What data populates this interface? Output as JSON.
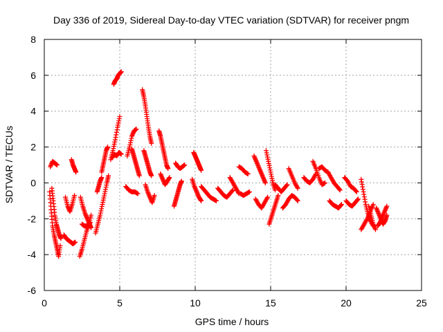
{
  "chart_data": {
    "type": "scatter",
    "title": "Day 336 of 2019, Sidereal Day-to-day VTEC variation (SDTVAR) for receiver pngm",
    "xlabel": "GPS time / hours",
    "ylabel": "SDTVAR / TECUs",
    "xlim": [
      0,
      25
    ],
    "ylim": [
      -6,
      8
    ],
    "xticks": [
      0,
      5,
      10,
      15,
      20,
      25
    ],
    "yticks": [
      -6,
      -4,
      -2,
      0,
      2,
      4,
      6,
      8
    ],
    "grid": true,
    "marker": "+",
    "color": "#ff0000",
    "segments": [
      {
        "x": [
          0.4,
          0.55,
          0.7,
          0.85
        ],
        "y": [
          0.9,
          1.2,
          1.1,
          1.0
        ]
      },
      {
        "x": [
          0.35,
          0.45,
          0.55,
          0.65,
          0.75,
          0.85,
          0.95,
          1.05
        ],
        "y": [
          -0.5,
          -1.5,
          -2.4,
          -2.9,
          -3.3,
          -3.7,
          -4.1,
          -3.5
        ]
      },
      {
        "x": [
          0.5,
          0.6,
          0.7,
          0.8,
          0.9,
          1.0,
          1.1
        ],
        "y": [
          -0.3,
          -1.0,
          -1.8,
          -2.3,
          -2.6,
          -2.9,
          -3.1
        ]
      },
      {
        "x": [
          1.3,
          1.45,
          1.6,
          1.75,
          1.9,
          2.05
        ],
        "y": [
          -2.9,
          -3.1,
          -3.2,
          -3.3,
          -3.4,
          -3.3
        ]
      },
      {
        "x": [
          1.4,
          1.55,
          1.7,
          1.85,
          2.0
        ],
        "y": [
          -0.8,
          -1.3,
          -1.6,
          -1.2,
          -0.7
        ]
      },
      {
        "x": [
          1.8,
          1.9,
          2.0,
          2.1
        ],
        "y": [
          1.3,
          1.0,
          0.8,
          0.6
        ]
      },
      {
        "x": [
          2.35,
          2.5,
          2.65,
          2.8,
          2.95,
          3.1
        ],
        "y": [
          -4.1,
          -3.7,
          -3.2,
          -2.7,
          -2.3,
          -1.8
        ]
      },
      {
        "x": [
          2.4,
          2.55,
          2.7,
          2.85,
          3.0,
          3.1
        ],
        "y": [
          -0.8,
          -1.3,
          -1.7,
          -2.0,
          -2.3,
          -2.5
        ]
      },
      {
        "x": [
          2.5,
          2.65,
          2.8,
          2.95,
          3.05
        ],
        "y": [
          -2.3,
          -2.4,
          -2.4,
          -2.3,
          -2.2
        ]
      },
      {
        "x": [
          3.4,
          3.55,
          3.7,
          3.85,
          4.0,
          4.15,
          4.25
        ],
        "y": [
          -2.8,
          -2.3,
          -1.8,
          -1.2,
          -0.6,
          0.0,
          0.4
        ]
      },
      {
        "x": [
          3.5,
          3.6,
          3.7,
          3.8
        ],
        "y": [
          -0.5,
          -0.2,
          0.1,
          0.3
        ]
      },
      {
        "x": [
          3.8,
          3.9,
          4.0,
          4.1,
          4.2
        ],
        "y": [
          0.6,
          1.0,
          1.4,
          1.8,
          2.0
        ]
      },
      {
        "x": [
          4.4,
          4.55,
          4.7,
          4.85,
          5.0
        ],
        "y": [
          1.3,
          1.8,
          2.4,
          3.1,
          3.7
        ]
      },
      {
        "x": [
          4.5,
          4.65,
          4.8,
          4.95,
          5.1
        ],
        "y": [
          1.4,
          1.6,
          1.5,
          1.7,
          1.6
        ]
      },
      {
        "x": [
          4.6,
          4.7,
          4.8,
          4.9,
          5.0,
          5.1
        ],
        "y": [
          5.5,
          5.7,
          5.8,
          6.0,
          6.1,
          6.2
        ]
      },
      {
        "x": [
          5.5,
          5.65,
          5.8,
          5.95,
          6.1
        ],
        "y": [
          1.5,
          2.0,
          2.6,
          2.9,
          3.0
        ]
      },
      {
        "x": [
          5.4,
          5.6,
          5.8,
          6.0,
          6.2
        ],
        "y": [
          -0.2,
          -0.4,
          -0.5,
          -0.5,
          -0.6
        ]
      },
      {
        "x": [
          5.8,
          5.9,
          6.0,
          6.1,
          6.2,
          6.3
        ],
        "y": [
          1.9,
          1.6,
          1.3,
          1.0,
          0.7,
          0.4
        ]
      },
      {
        "x": [
          6.5,
          6.6,
          6.7,
          6.8,
          6.9,
          7.0,
          7.1
        ],
        "y": [
          5.2,
          4.8,
          4.3,
          3.7,
          3.1,
          2.6,
          2.2
        ]
      },
      {
        "x": [
          6.6,
          6.7,
          6.8,
          6.9,
          7.0,
          7.1
        ],
        "y": [
          1.8,
          1.5,
          1.2,
          0.9,
          0.6,
          0.4
        ]
      },
      {
        "x": [
          6.7,
          6.85,
          7.0,
          7.15,
          7.3
        ],
        "y": [
          -0.1,
          -0.5,
          -0.8,
          -1.1,
          -0.7
        ]
      },
      {
        "x": [
          7.6,
          7.7,
          7.8,
          7.9,
          8.0,
          8.1,
          8.2
        ],
        "y": [
          2.9,
          2.6,
          2.2,
          1.8,
          1.4,
          1.0,
          0.8
        ]
      },
      {
        "x": [
          7.7,
          7.85,
          8.0,
          8.15,
          8.3
        ],
        "y": [
          0.5,
          0.2,
          -0.1,
          0.1,
          0.3
        ]
      },
      {
        "x": [
          8.6,
          8.7,
          8.8,
          8.9,
          9.0,
          9.1
        ],
        "y": [
          -1.3,
          -1.0,
          -0.7,
          -0.4,
          -0.1,
          0.1
        ]
      },
      {
        "x": [
          8.7,
          8.85,
          9.0,
          9.15,
          9.3
        ],
        "y": [
          1.1,
          0.9,
          0.8,
          0.9,
          1.0
        ]
      },
      {
        "x": [
          9.9,
          10.0,
          10.1,
          10.2,
          10.3,
          10.4
        ],
        "y": [
          1.7,
          1.5,
          1.3,
          1.1,
          0.9,
          0.7
        ]
      },
      {
        "x": [
          9.8,
          9.95,
          10.1,
          10.25,
          10.4
        ],
        "y": [
          0.2,
          -0.2,
          -0.5,
          -0.8,
          -1.0
        ]
      },
      {
        "x": [
          10.4,
          10.6,
          10.8,
          11.0,
          11.2,
          11.4
        ],
        "y": [
          -0.2,
          -0.4,
          -0.6,
          -0.8,
          -0.9,
          -1.0
        ]
      },
      {
        "x": [
          11.5,
          11.7,
          11.9,
          12.1,
          12.3,
          12.5
        ],
        "y": [
          -0.3,
          -0.5,
          -0.7,
          -0.8,
          -0.6,
          -0.4
        ]
      },
      {
        "x": [
          12.3,
          12.5,
          12.7,
          12.9
        ],
        "y": [
          0.3,
          0.0,
          -0.3,
          -0.6
        ]
      },
      {
        "x": [
          12.9,
          13.1,
          13.3,
          13.5
        ],
        "y": [
          0.9,
          0.8,
          0.6,
          0.5
        ]
      },
      {
        "x": [
          13.0,
          13.2,
          13.4,
          13.6
        ],
        "y": [
          -0.6,
          -0.7,
          -0.6,
          -0.5
        ]
      },
      {
        "x": [
          13.9,
          14.05,
          14.2,
          14.35,
          14.5,
          14.65
        ],
        "y": [
          1.5,
          1.2,
          0.9,
          0.6,
          0.3,
          0.0
        ]
      },
      {
        "x": [
          14.0,
          14.2,
          14.4,
          14.6,
          14.8
        ],
        "y": [
          -0.9,
          -1.2,
          -1.4,
          -1.1,
          -0.8
        ]
      },
      {
        "x": [
          14.7,
          14.85,
          15.0,
          15.15,
          15.3
        ],
        "y": [
          1.8,
          1.2,
          0.6,
          0.0,
          -0.4
        ]
      },
      {
        "x": [
          14.9,
          15.05,
          15.2,
          15.35,
          15.5
        ],
        "y": [
          -2.3,
          -1.9,
          -1.5,
          -1.1,
          -0.7
        ]
      },
      {
        "x": [
          15.3,
          15.5,
          15.7,
          15.9,
          16.1
        ],
        "y": [
          -0.1,
          -0.3,
          -0.5,
          -0.3,
          -0.1
        ]
      },
      {
        "x": [
          15.8,
          16.0,
          16.2,
          16.4,
          16.6,
          16.8
        ],
        "y": [
          -1.4,
          -1.2,
          -0.9,
          -0.7,
          -0.8,
          -1.0
        ]
      },
      {
        "x": [
          16.2,
          16.4,
          16.6,
          16.8
        ],
        "y": [
          0.8,
          0.4,
          0.0,
          -0.3
        ]
      },
      {
        "x": [
          17.2,
          17.4,
          17.6,
          17.8,
          18.0
        ],
        "y": [
          0.3,
          0.1,
          0.0,
          0.2,
          0.5
        ]
      },
      {
        "x": [
          17.8,
          18.0,
          18.2,
          18.4,
          18.6
        ],
        "y": [
          1.2,
          0.8,
          0.3,
          -0.1,
          0.0
        ]
      },
      {
        "x": [
          18.2,
          18.4,
          18.6,
          18.8
        ],
        "y": [
          0.8,
          0.9,
          0.7,
          0.6
        ]
      },
      {
        "x": [
          18.8,
          19.0,
          19.2,
          19.4,
          19.6
        ],
        "y": [
          0.6,
          0.3,
          0.0,
          -0.2,
          -0.4
        ]
      },
      {
        "x": [
          18.9,
          19.1,
          19.3,
          19.5,
          19.7
        ],
        "y": [
          -1.0,
          -1.2,
          -1.3,
          -1.4,
          -1.2
        ]
      },
      {
        "x": [
          19.9,
          20.1,
          20.3,
          20.5,
          20.7
        ],
        "y": [
          0.3,
          0.1,
          -0.2,
          -0.3,
          -0.5
        ]
      },
      {
        "x": [
          20.0,
          20.2,
          20.4,
          20.6,
          20.8
        ],
        "y": [
          -1.0,
          -1.2,
          -1.3,
          -1.1,
          -0.9
        ]
      },
      {
        "x": [
          21.0,
          21.15,
          21.3,
          21.45,
          21.6,
          21.8
        ],
        "y": [
          0.2,
          -0.5,
          -1.2,
          -1.7,
          -2.1,
          -2.4
        ]
      },
      {
        "x": [
          21.0,
          21.2,
          21.4,
          21.6,
          21.8
        ],
        "y": [
          -2.6,
          -2.3,
          -2.0,
          -1.6,
          -1.2
        ]
      },
      {
        "x": [
          21.5,
          21.65,
          21.8,
          21.95
        ],
        "y": [
          -1.3,
          -1.8,
          -2.3,
          -2.6
        ]
      },
      {
        "x": [
          22.0,
          22.15,
          22.3,
          22.45,
          22.6,
          22.7
        ],
        "y": [
          -1.4,
          -1.7,
          -2.0,
          -2.3,
          -2.1,
          -1.8
        ]
      },
      {
        "x": [
          22.1,
          22.25,
          22.4,
          22.55,
          22.7
        ],
        "y": [
          -2.4,
          -2.2,
          -1.9,
          -1.6,
          -1.3
        ]
      }
    ]
  }
}
